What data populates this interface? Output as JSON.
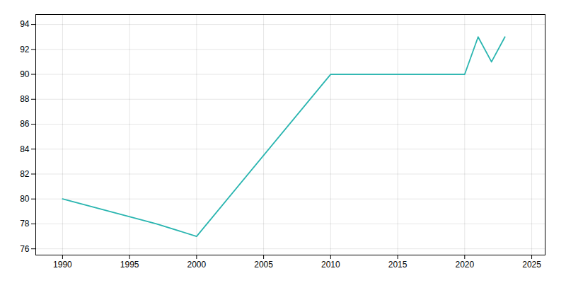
{
  "chart_data": {
    "type": "line",
    "x": [
      1990,
      1997,
      2000,
      2010,
      2015,
      2020,
      2021,
      2022,
      2023
    ],
    "values": [
      80,
      78,
      77,
      90,
      90,
      90,
      93,
      91,
      93
    ],
    "color": "#2ab5b0",
    "xlim": [
      1988,
      2026
    ],
    "ylim": [
      75.5,
      94.8
    ],
    "xticks": [
      1990,
      1995,
      2000,
      2005,
      2010,
      2015,
      2020,
      2025
    ],
    "yticks": [
      76,
      78,
      80,
      82,
      84,
      86,
      88,
      90,
      92,
      94
    ],
    "grid": true
  }
}
